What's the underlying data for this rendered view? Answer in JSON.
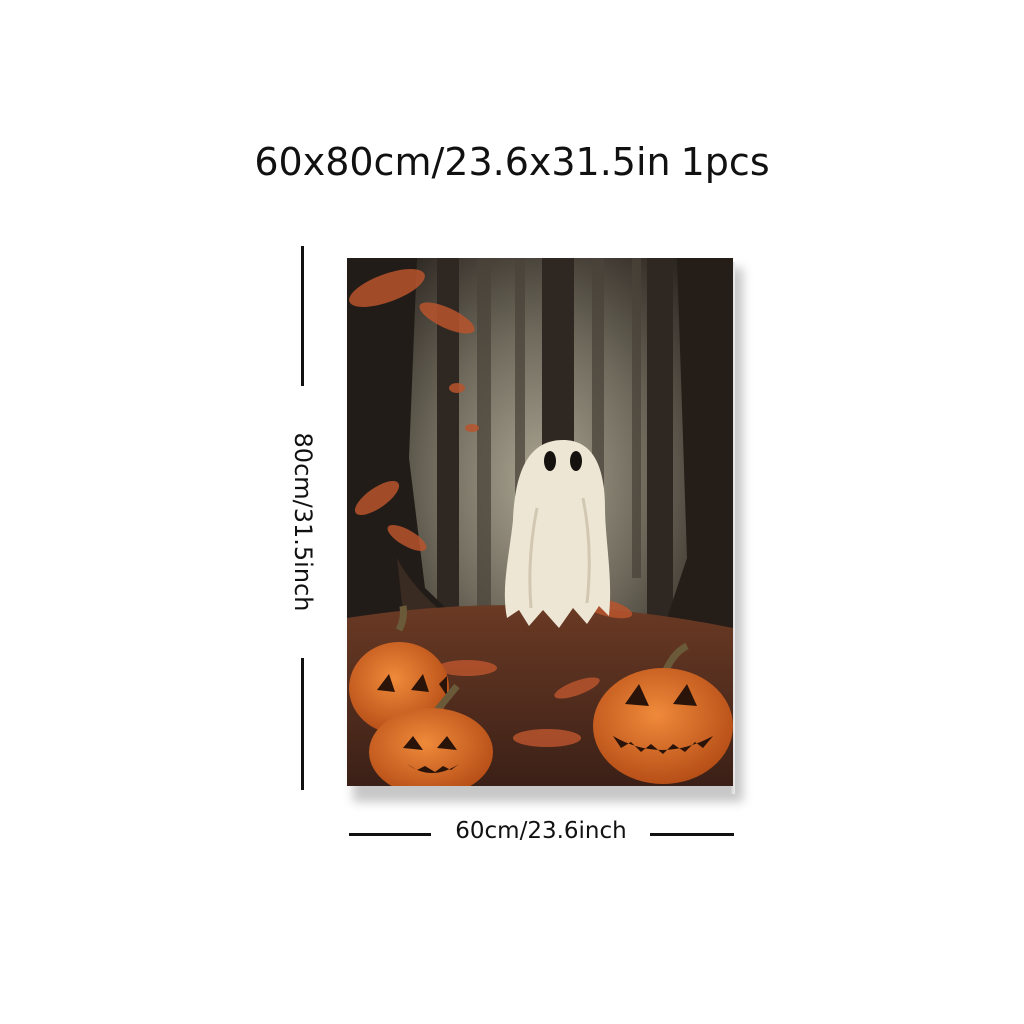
{
  "header": {
    "size_label": "60x80cm/23.6x31.5in",
    "quantity_label": "1pcs"
  },
  "dimensions": {
    "height_label": "80cm/31.5inch",
    "width_label": "60cm/23.6inch"
  },
  "artwork": {
    "subject": "ghost-in-forest-with-pumpkins",
    "colors": {
      "background": "#2b2520",
      "fog": "#8f8a7a",
      "ghost": "#ede6d4",
      "pumpkin": "#e0762a",
      "leaves": "#b9542d"
    }
  }
}
